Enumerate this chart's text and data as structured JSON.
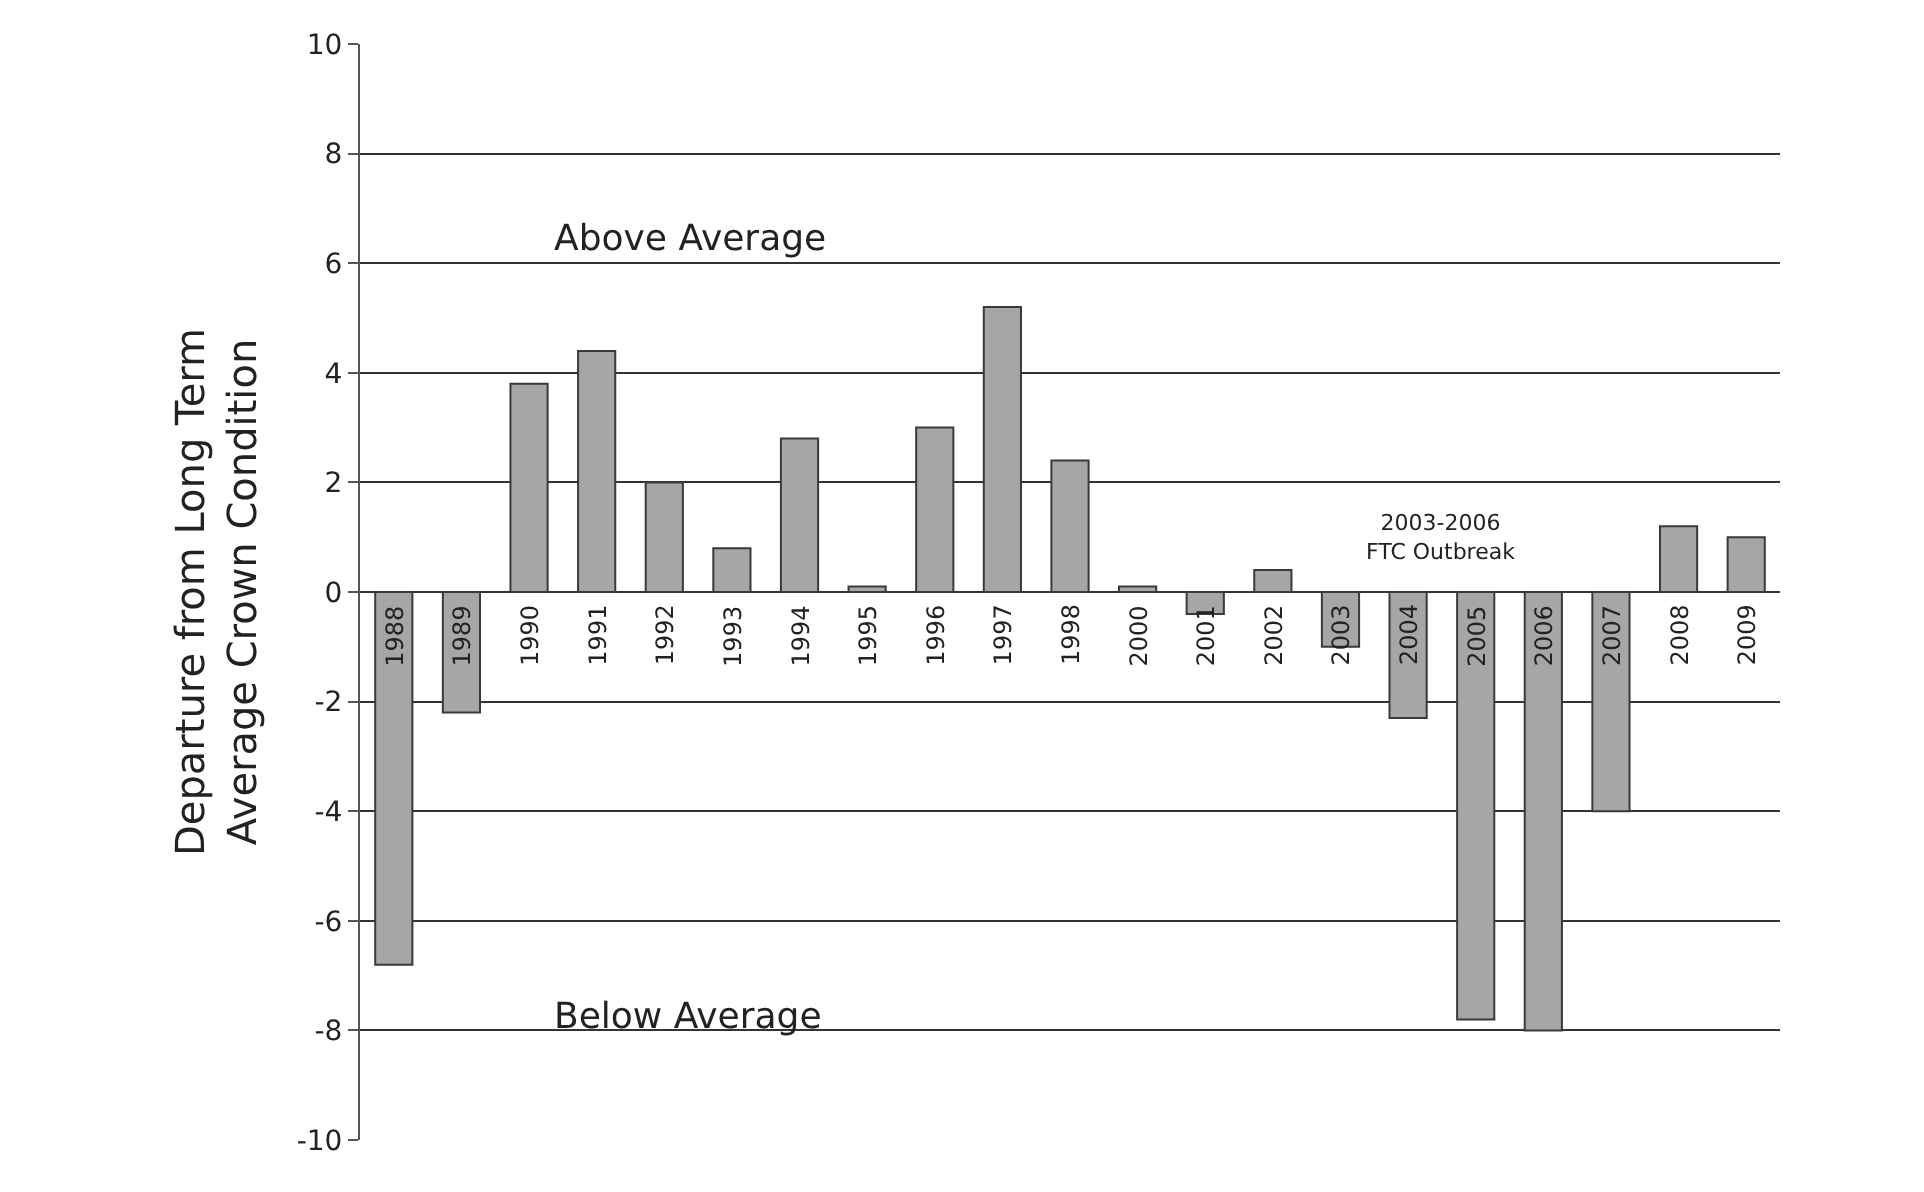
{
  "chart_data": {
    "type": "bar",
    "ylabel": "Departure from Long Term\nAverage Crown Condition",
    "categories": [
      "1988",
      "1989",
      "1990",
      "1991",
      "1992",
      "1993",
      "1994",
      "1995",
      "1996",
      "1997",
      "1998",
      "2000",
      "2001",
      "2002",
      "2003",
      "2004",
      "2005",
      "2006",
      "2007",
      "2008",
      "2009"
    ],
    "values": [
      -6.8,
      -2.2,
      3.8,
      4.4,
      2.0,
      0.8,
      2.8,
      0.1,
      3.0,
      5.2,
      2.4,
      0.1,
      -0.4,
      0.4,
      -1.0,
      -2.3,
      -7.8,
      -8.0,
      -4.0,
      1.2,
      1.0
    ],
    "color": "#a6a6a6",
    "ylim": [
      -10,
      10
    ],
    "yticks": [
      -10,
      -8,
      -6,
      -4,
      -2,
      0,
      2,
      4,
      6,
      8,
      10
    ],
    "grid": "y",
    "annotations": [
      "Above Average",
      "Below Average",
      "2003-2006\nFTC Outbreak"
    ]
  }
}
